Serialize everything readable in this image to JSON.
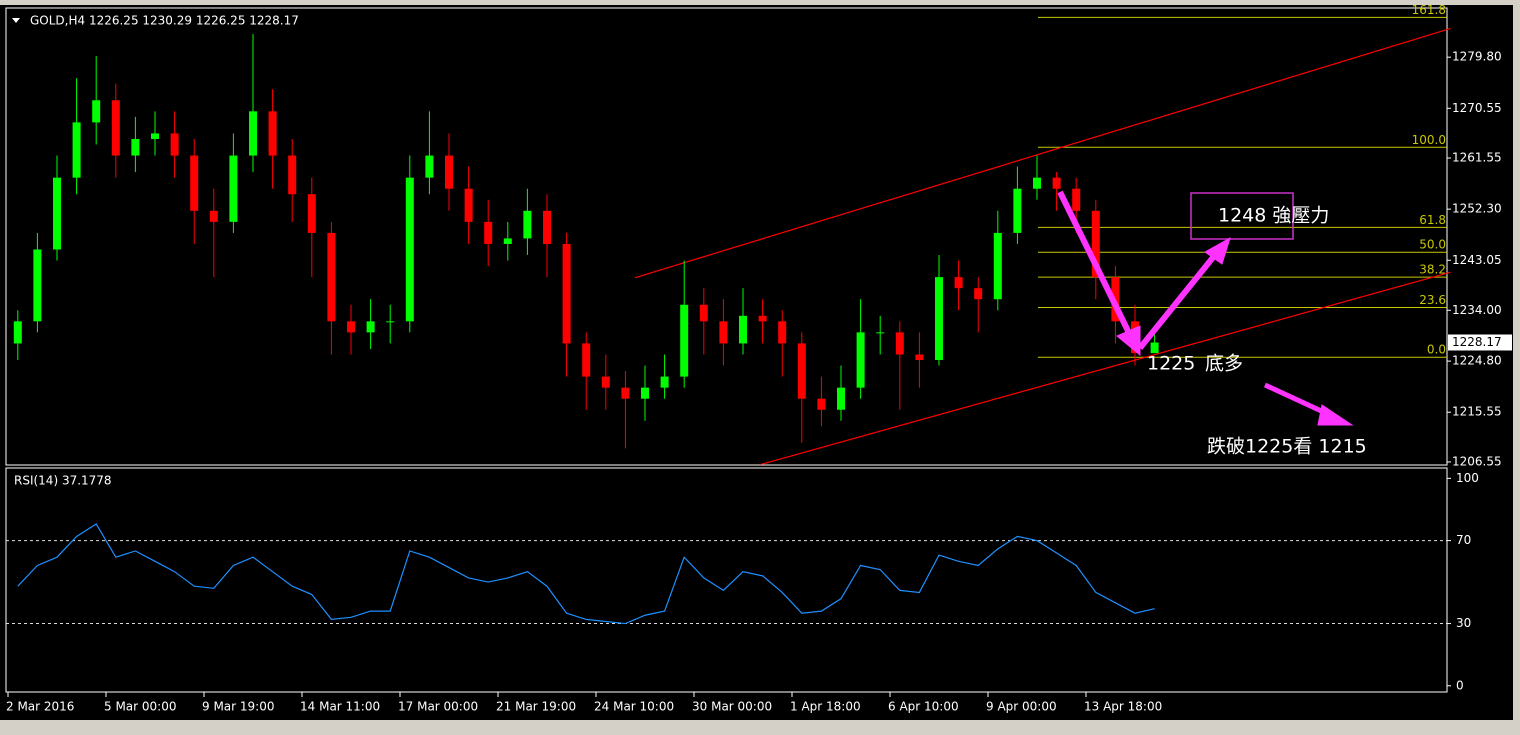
{
  "chart_data": [
    {
      "type": "candlestick",
      "title": "GOLD,H4  1226.25 1230.29 1226.25 1228.17",
      "categories": [
        "2 Mar 2016",
        null,
        null,
        null,
        null,
        "5 Mar 00:00",
        null,
        null,
        null,
        null,
        "9 Mar 19:00",
        null,
        null,
        null,
        null,
        "14 Mar 11:00",
        null,
        null,
        null,
        null,
        "17 Mar 00:00",
        null,
        null,
        null,
        null,
        "21 Mar 19:00",
        null,
        null,
        null,
        null,
        "24 Mar 10:00",
        null,
        null,
        null,
        null,
        "30 Mar 00:00",
        null,
        null,
        null,
        null,
        "1 Apr 18:00",
        null,
        null,
        null,
        null,
        "6 Apr 10:00",
        null,
        null,
        null,
        null,
        "9 Apr 00:00",
        null,
        null,
        null,
        null,
        "13 Apr 18:00",
        null,
        null,
        null
      ],
      "open": [
        1228,
        1232,
        1245,
        1258,
        1268,
        1272,
        1262,
        1265,
        1266,
        1262,
        1252,
        1250,
        1262,
        1270,
        1262,
        1255,
        1248,
        1232,
        1230,
        1232,
        1232,
        1258,
        1262,
        1256,
        1250,
        1246,
        1247,
        1252,
        1246,
        1228,
        1222,
        1220,
        1218,
        1220,
        1222,
        1235,
        1232,
        1228,
        1233,
        1232,
        1228,
        1218,
        1216,
        1220,
        1230,
        1230,
        1226,
        1225,
        1240,
        1238,
        1236,
        1248,
        1256,
        1258,
        1256,
        1252,
        1240,
        1232,
        1226.25
      ],
      "high": [
        1234,
        1248,
        1262,
        1276,
        1280,
        1275,
        1269,
        1270,
        1270,
        1265,
        1256,
        1266,
        1284,
        1274,
        1265,
        1258,
        1250,
        1235,
        1236,
        1235,
        1262,
        1270,
        1266,
        1260,
        1254,
        1250,
        1256,
        1255,
        1248,
        1230,
        1226,
        1223,
        1224,
        1226,
        1243,
        1238,
        1236,
        1238,
        1236,
        1234,
        1230,
        1222,
        1224,
        1236,
        1233,
        1232,
        1230,
        1244,
        1243,
        1240,
        1252,
        1260,
        1262,
        1259,
        1258,
        1254,
        1242,
        1235,
        1230.29
      ],
      "low": [
        1225,
        1230,
        1243,
        1255,
        1264,
        1258,
        1259,
        1262,
        1258,
        1246,
        1240,
        1248,
        1259,
        1256,
        1250,
        1240,
        1226,
        1226,
        1227,
        1228,
        1230,
        1255,
        1252,
        1246,
        1242,
        1243,
        1244,
        1240,
        1222,
        1216,
        1216,
        1209,
        1214,
        1218,
        1220,
        1226,
        1224,
        1226,
        1228,
        1222,
        1210,
        1213,
        1214,
        1218,
        1226,
        1216,
        1220,
        1224,
        1234,
        1230,
        1234,
        1246,
        1254,
        1252,
        1248,
        1236,
        1228,
        1224,
        1226.25
      ],
      "close": [
        1232,
        1245,
        1258,
        1268,
        1272,
        1262,
        1265,
        1266,
        1262,
        1252,
        1250,
        1262,
        1270,
        1262,
        1255,
        1248,
        1232,
        1230,
        1232,
        1232,
        1258,
        1262,
        1256,
        1250,
        1246,
        1247,
        1252,
        1246,
        1228,
        1222,
        1220,
        1218,
        1220,
        1222,
        1235,
        1232,
        1228,
        1233,
        1232,
        1228,
        1218,
        1216,
        1220,
        1230,
        1230,
        1226,
        1225,
        1240,
        1238,
        1236,
        1248,
        1256,
        1258,
        1256,
        1252,
        1240,
        1232,
        1226.25,
        1228.17
      ],
      "up_color": "#00ff00",
      "down_color": "#ff0000",
      "ylim": [
        1206,
        1288.7
      ],
      "yticks": [
        1206.55,
        1215.55,
        {
          "value": 1224.8,
          "label": "1224.80"
        },
        {
          "value": 1234,
          "label": "1234.00"
        },
        1243.05,
        {
          "value": 1252.3,
          "label": "1252.30"
        },
        1261.55,
        1270.55,
        {
          "value": 1279.8,
          "label": "1279.80"
        }
      ],
      "fib_levels": [
        {
          "label": "0.0",
          "price": 1225.5
        },
        {
          "label": "23.6",
          "price": 1234.5
        },
        {
          "label": "38.2",
          "price": 1240
        },
        {
          "label": "50.0",
          "price": 1244.5
        },
        {
          "label": "61.8",
          "price": 1249
        },
        {
          "label": "100.0",
          "price": 1263.5
        },
        {
          "label": "161.8",
          "price": 1287
        }
      ],
      "fib_color": "#c8c800",
      "trendlines": [
        {
          "x": [
            31.5,
            73.1
          ],
          "y": [
            1239.9,
            1285
          ],
          "color": "#ff0000"
        },
        {
          "x": [
            37.9,
            73.1
          ],
          "y": [
            1206.1,
            1240.9
          ],
          "color": "#ff0000"
        }
      ],
      "annotations": [
        "1248 強壓力",
        "1225",
        "底多",
        "跌破1225看 1215"
      ]
    },
    {
      "type": "line",
      "title": "RSI(14) 37.1778",
      "series": [
        {
          "color": "#1e90ff",
          "values": [
            48,
            58,
            62,
            72,
            78,
            62,
            65,
            60,
            55,
            48,
            47,
            58,
            62,
            55,
            48,
            44,
            32,
            33,
            36,
            36,
            65,
            62,
            57,
            52,
            50,
            52,
            55,
            48,
            35,
            32,
            31,
            30,
            34,
            36,
            62,
            52,
            46,
            55,
            53,
            45,
            35,
            36,
            42,
            58,
            56,
            46,
            45,
            63,
            60,
            58,
            66,
            72,
            70,
            64,
            58,
            45,
            40,
            35,
            37.18
          ]
        }
      ],
      "ylim": [
        -3,
        105
      ],
      "yticks": [
        0,
        30,
        70,
        100
      ],
      "dashed_levels": [
        30,
        70
      ]
    }
  ]
}
